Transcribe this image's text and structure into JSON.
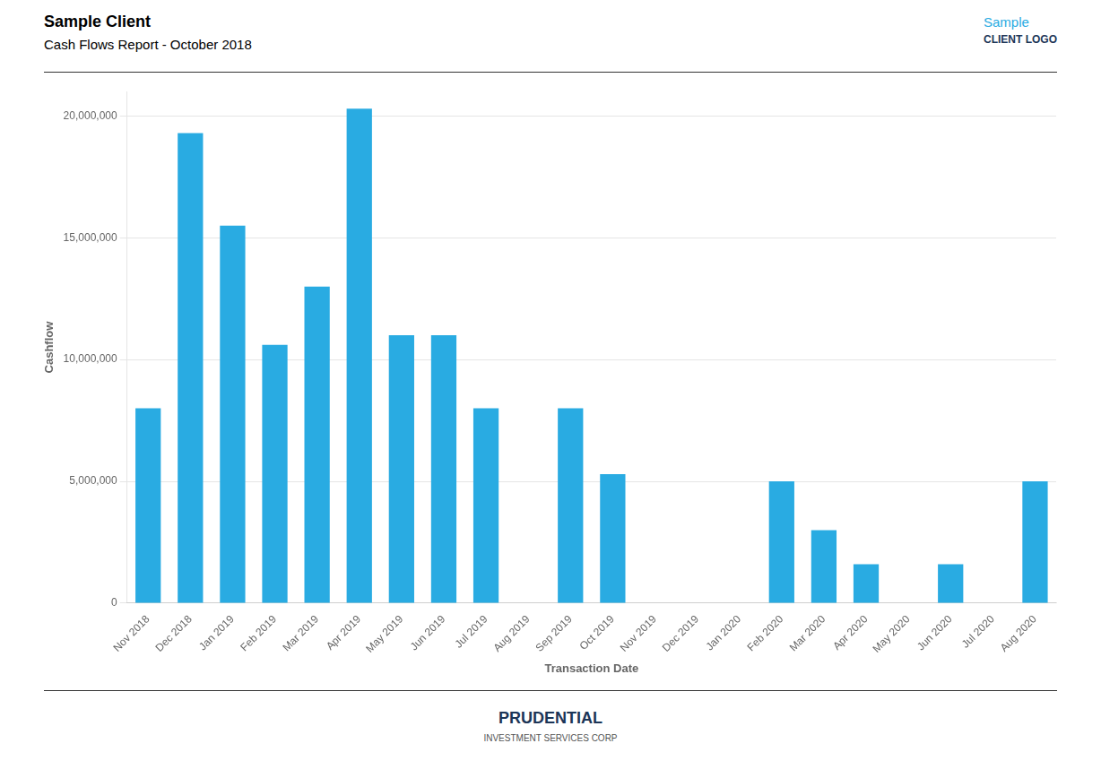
{
  "chart_data": {
    "type": "bar",
    "title": "Sample Client",
    "subtitle": "Cash Flows Report - October 2018",
    "x_label": "Transaction Date",
    "y_label": "Cashflow",
    "categories": [
      "Nov 2018",
      "Dec 2018",
      "Jan 2019",
      "Feb 2019",
      "Mar 2019",
      "Apr 2019",
      "May 2019",
      "Jun 2019",
      "Jul 2019",
      "Aug 2019",
      "Sep 2019",
      "Oct 2019",
      "Nov 2019",
      "Dec 2019",
      "Jan 2020",
      "Feb 2020",
      "Mar 2020",
      "Apr 2020",
      "May 2020",
      "Jun 2020",
      "Jul 2020",
      "Aug 2020"
    ],
    "values": [
      8000000,
      19300000,
      15500000,
      10600000,
      13000000,
      20300000,
      11000000,
      11000000,
      8000000,
      0,
      8000000,
      5300000,
      0,
      0,
      0,
      5000000,
      3000000,
      1600000,
      0,
      1600000,
      0,
      5000000
    ],
    "color": "#29ABE2",
    "ylim": [
      0,
      21000000
    ],
    "yticks": [
      0,
      {
        "value": 5000000,
        "label": "5,000,000"
      },
      {
        "value": 10000000,
        "label": "10,000,000"
      },
      {
        "value": 15000000,
        "label": "15,000,000"
      },
      {
        "value": 20000000,
        "label": "20,000,000"
      }
    ],
    "grid": true,
    "annotations": [
      "Sample",
      "CLIENT LOGO",
      "PRUDENTIAL",
      "INVESTMENT SERVICES CORP"
    ]
  }
}
